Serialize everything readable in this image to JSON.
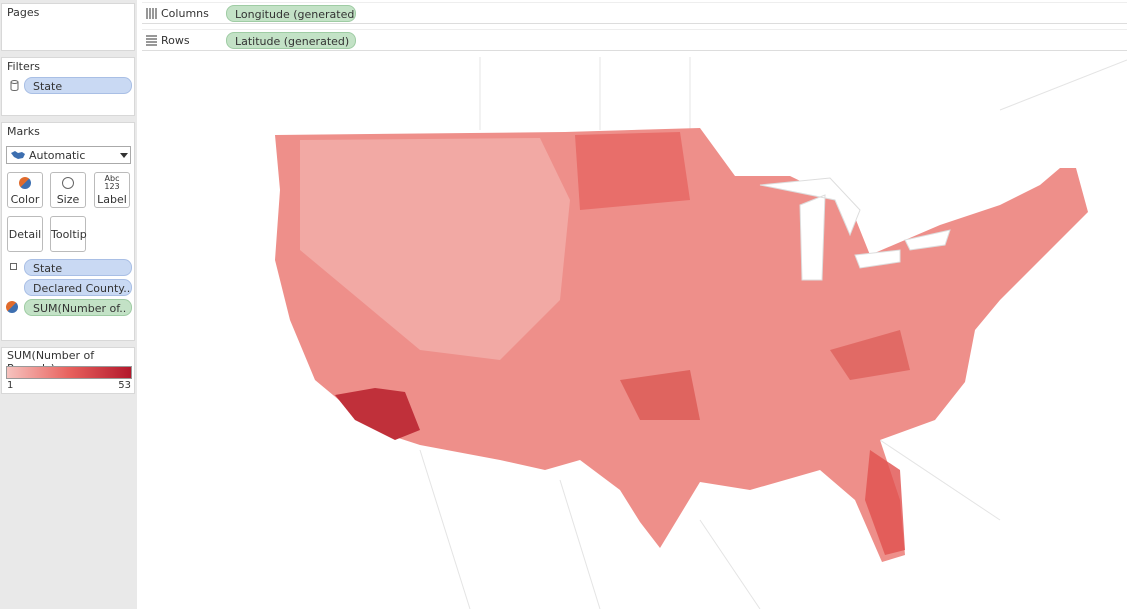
{
  "pages": {
    "title": "Pages"
  },
  "filters": {
    "title": "Filters",
    "pills": [
      "State"
    ]
  },
  "marks": {
    "title": "Marks",
    "mark_type": "Automatic",
    "buttons": [
      {
        "label": "Color"
      },
      {
        "label": "Size"
      },
      {
        "label": "Label",
        "icon_lines": [
          "Abc",
          "123"
        ]
      },
      {
        "label": "Detail"
      },
      {
        "label": "Tooltip"
      }
    ],
    "pills": [
      "State",
      "Declared County..",
      "SUM(Number of.."
    ]
  },
  "legend": {
    "title": "SUM(Number of Records)",
    "min": 1,
    "max": 53
  },
  "shelves": {
    "columns": {
      "label": "Columns",
      "pill": "Longitude (generated)"
    },
    "rows": {
      "label": "Rows",
      "pill": "Latitude (generated)"
    }
  }
}
